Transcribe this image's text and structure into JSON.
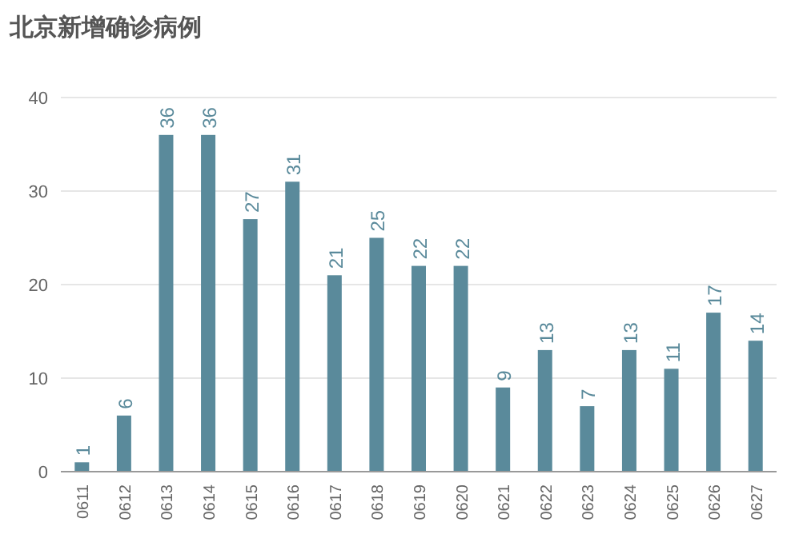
{
  "chart_data": {
    "type": "bar",
    "title": "北京新增确诊病例",
    "categories": [
      "0611",
      "0612",
      "0613",
      "0614",
      "0615",
      "0616",
      "0617",
      "0618",
      "0619",
      "0620",
      "0621",
      "0622",
      "0623",
      "0624",
      "0625",
      "0626",
      "0627"
    ],
    "values": [
      1,
      6,
      36,
      36,
      27,
      31,
      21,
      25,
      22,
      22,
      9,
      13,
      7,
      13,
      11,
      17,
      14
    ],
    "color": "#5a8a9b",
    "ylim": [
      0,
      40
    ],
    "yticks": [
      0,
      10,
      20,
      30,
      40
    ],
    "grid": "y",
    "data_labels": true
  }
}
